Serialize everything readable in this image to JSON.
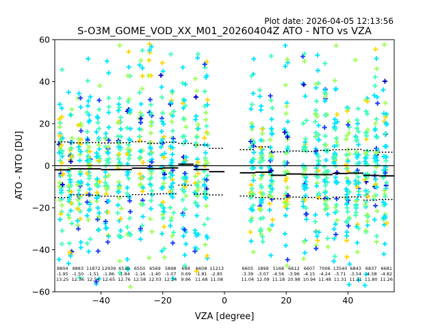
{
  "plot_date": "Plot date: 2026-04-05 12:13:56",
  "chart_data": {
    "type": "scatter",
    "title": "S-O3M_GOME_VOD_XX_M01_20260404Z ATO - NTO vs VZA",
    "xlabel": "VZA [degree]",
    "ylabel": "ATO - NTO [DU]",
    "xlim": [
      -55,
      55
    ],
    "ylim": [
      -60,
      60
    ],
    "xticks": [
      -40,
      -20,
      0,
      20,
      40
    ],
    "yticks": [
      -60,
      -40,
      -20,
      0,
      20,
      40,
      60
    ],
    "zero_line": 0,
    "scatter_colors": [
      "#00e5ff",
      "#40ffb8",
      "#9dff5a",
      "#ffd700",
      "#1a3cff",
      "#0000cc"
    ],
    "bins": [
      {
        "x": -52.5,
        "count": "8804",
        "mean": -1.95,
        "std": 13.25
      },
      {
        "x": -47.5,
        "count": "9883",
        "mean": -1.5,
        "std": 12.36
      },
      {
        "x": -42.5,
        "count": "11872",
        "mean": -1.51,
        "std": 12.54
      },
      {
        "x": -37.5,
        "count": "12939",
        "mean": -1.86,
        "std": 12.65
      },
      {
        "x": -32.5,
        "count": "6530",
        "mean": -1.84,
        "std": 12.76
      },
      {
        "x": -27.5,
        "count": "6550",
        "mean": -1.16,
        "std": 12.58
      },
      {
        "x": -22.5,
        "count": "6569",
        "mean": -1.4,
        "std": 12.03
      },
      {
        "x": -17.5,
        "count": "5898",
        "mean": -1.07,
        "std": 12.24
      },
      {
        "x": -12.5,
        "count": "698",
        "mean": 0.69,
        "std": 9.96
      },
      {
        "x": -7.5,
        "count": "6608",
        "mean": -1.81,
        "std": 11.68
      },
      {
        "x": -2.5,
        "count": "11213",
        "mean": -2.85,
        "std": 11.08
      },
      {
        "x": 7.5,
        "count": "6605",
        "mean": -3.39,
        "std": 11.04
      },
      {
        "x": 12.5,
        "count": "1899",
        "mean": -3.07,
        "std": 12.09
      },
      {
        "x": 17.5,
        "count": "5168",
        "mean": -4.56,
        "std": 11.18
      },
      {
        "x": 22.5,
        "count": "6612",
        "mean": -3.96,
        "std": 10.98
      },
      {
        "x": 27.5,
        "count": "6607",
        "mean": -4.15,
        "std": 10.94
      },
      {
        "x": 32.5,
        "count": "7006",
        "mean": -4.24,
        "std": 11.48
      },
      {
        "x": 37.5,
        "count": "13540",
        "mean": -3.71,
        "std": 11.31
      },
      {
        "x": 42.5,
        "count": "6843",
        "mean": -3.54,
        "std": 11.31
      },
      {
        "x": 47.5,
        "count": "6837",
        "mean": -4.58,
        "std": 11.8
      },
      {
        "x": 52.5,
        "count": "6681",
        "mean": -4.82,
        "std": 11.26
      }
    ],
    "data_columns": [
      -53,
      -50,
      -47,
      -44,
      -41,
      -38,
      -34,
      -31,
      -27,
      -24,
      -20,
      -17,
      -13,
      -9,
      -6,
      9,
      12,
      15,
      20,
      26,
      30,
      33,
      36,
      40,
      43,
      46,
      49,
      52
    ]
  }
}
